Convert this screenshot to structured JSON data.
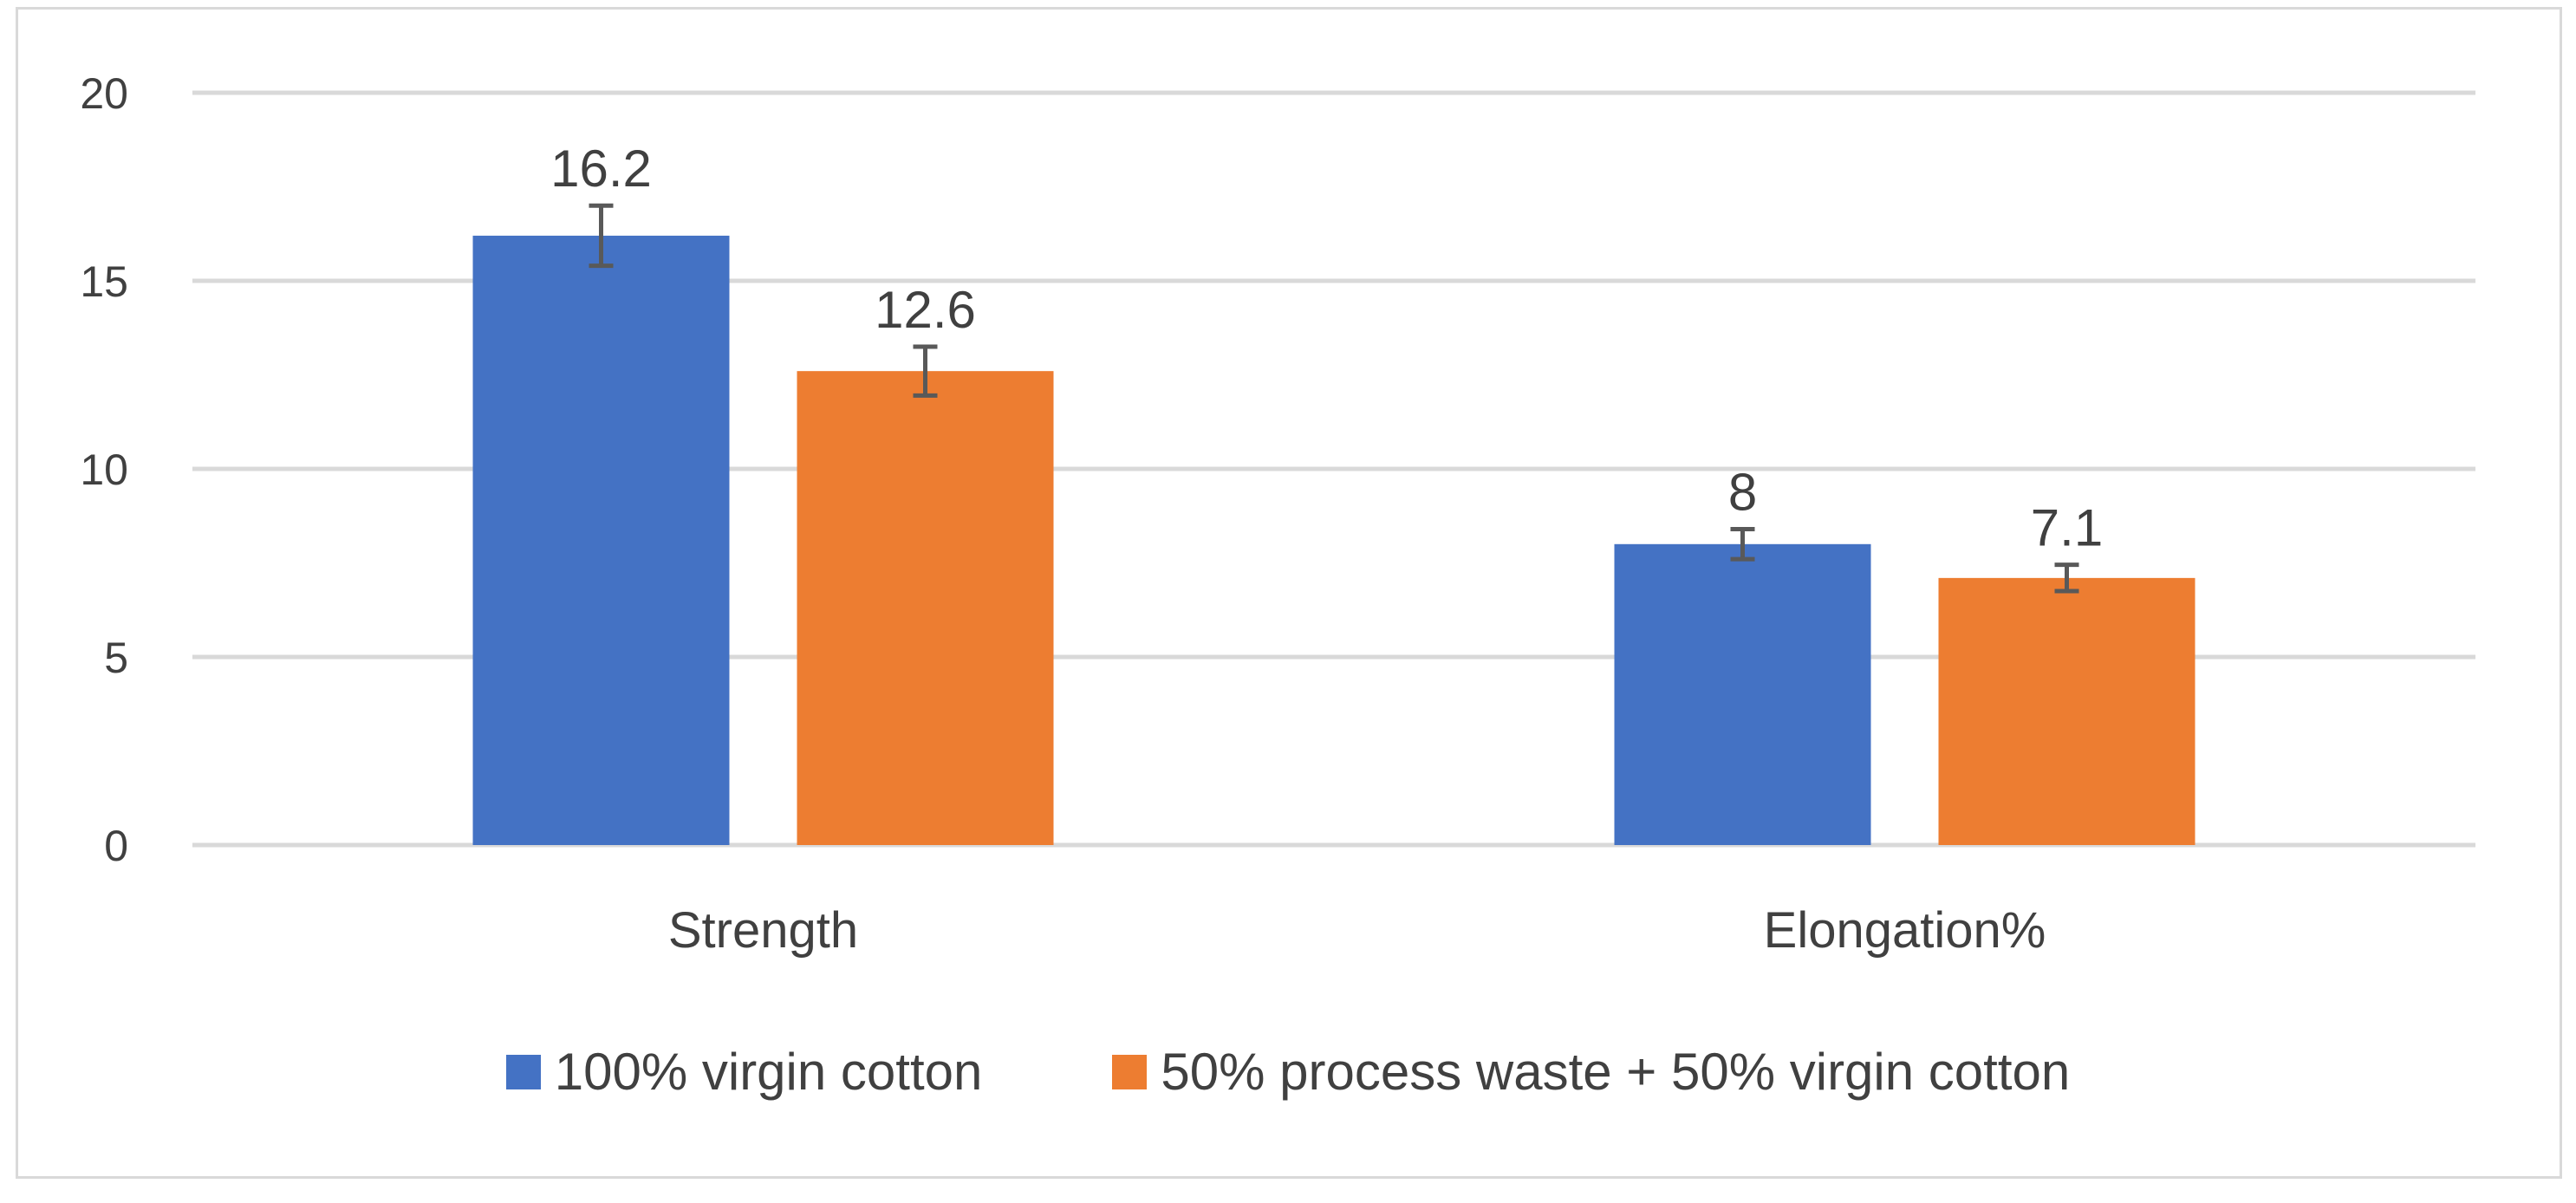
{
  "chart_data": {
    "type": "bar",
    "title": "",
    "xlabel": "",
    "ylabel": "",
    "categories": [
      "Strength",
      "Elongation%"
    ],
    "series": [
      {
        "name": "100% virgin cotton",
        "color": "#4472c4",
        "values": [
          16.2,
          8
        ],
        "errors": [
          0.8,
          0.4
        ],
        "labels": [
          "16.2",
          "8"
        ]
      },
      {
        "name": "50% process waste + 50% virgin cotton",
        "color": "#ed7d31",
        "values": [
          12.6,
          7.1
        ],
        "errors": [
          0.65,
          0.35
        ],
        "labels": [
          "12.6",
          "7.1"
        ]
      }
    ],
    "ylim": [
      0,
      20
    ],
    "yticks": [
      0,
      5,
      10,
      15,
      20
    ],
    "ytick_labels": [
      "0",
      "5",
      "10",
      "15",
      "20"
    ],
    "grid": true,
    "legend_position": "bottom",
    "gridline_color": "#d9d9d9",
    "text_color": "#404040",
    "error_bar_color": "#595959"
  }
}
